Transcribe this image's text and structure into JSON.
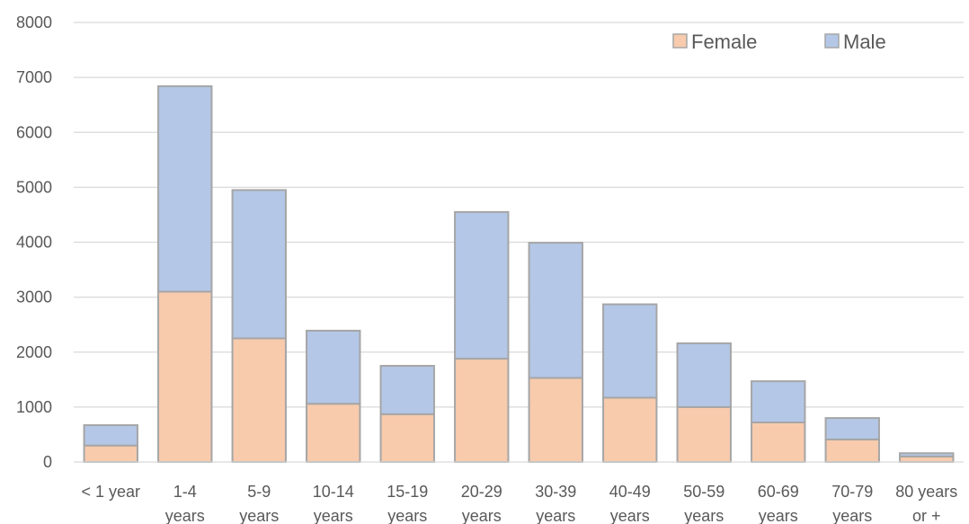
{
  "chart_data": {
    "type": "bar",
    "stacked": true,
    "categories": [
      [
        "< 1 year"
      ],
      [
        "1-4",
        "years"
      ],
      [
        "5-9",
        "years"
      ],
      [
        "10-14",
        "years"
      ],
      [
        "15-19",
        "years"
      ],
      [
        "20-29",
        "years"
      ],
      [
        "30-39",
        "years"
      ],
      [
        "40-49",
        "years"
      ],
      [
        "50-59",
        "years"
      ],
      [
        "60-69",
        "years"
      ],
      [
        "70-79",
        "years"
      ],
      [
        "80 years",
        "or +"
      ]
    ],
    "series": [
      {
        "name": "Female",
        "color": "#f8cbad",
        "values": [
          300,
          3100,
          2250,
          1060,
          870,
          1880,
          1530,
          1170,
          1000,
          720,
          410,
          100
        ]
      },
      {
        "name": "Male",
        "color": "#b4c7e7",
        "values": [
          370,
          3740,
          2700,
          1330,
          880,
          2670,
          2460,
          1700,
          1160,
          750,
          390,
          60
        ]
      }
    ],
    "ylim": [
      0,
      8000
    ],
    "yticks": [
      0,
      1000,
      2000,
      3000,
      4000,
      5000,
      6000,
      7000,
      8000
    ],
    "grid": true,
    "legend_position": "top-right",
    "title": "",
    "xlabel": "",
    "ylabel": ""
  }
}
